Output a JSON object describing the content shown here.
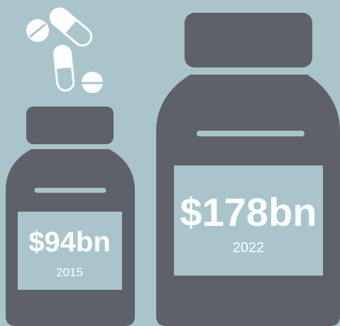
{
  "items": [
    {
      "value_label": "$94bn",
      "year": "2015"
    },
    {
      "value_label": "$178bn",
      "year": "2022"
    }
  ]
}
